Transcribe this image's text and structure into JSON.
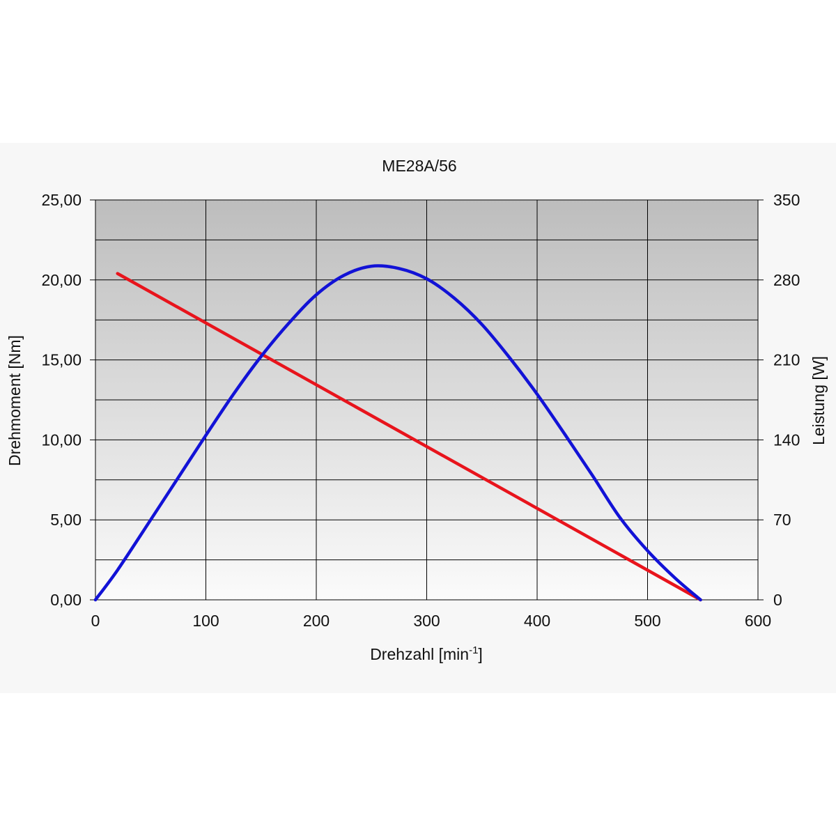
{
  "chart_data": {
    "type": "line",
    "title": "ME28A/56",
    "xlabel": "Drehzahl [min",
    "xlabel_superscript": "-1",
    "xlabel_suffix": "]",
    "ylabel_left": "Drehmoment [Nm]",
    "ylabel_right": "Leistung [W]",
    "xlim": [
      0,
      600
    ],
    "ylim_left": [
      0,
      25
    ],
    "ylim_right": [
      0,
      350
    ],
    "x_ticks": [
      "0",
      "100",
      "200",
      "300",
      "400",
      "500",
      "600"
    ],
    "y_left_ticks": [
      "0,00",
      "5,00",
      "10,00",
      "15,00",
      "20,00",
      "25,00"
    ],
    "y_right_ticks": [
      "0",
      "70",
      "140",
      "210",
      "280",
      "350"
    ],
    "grid": true,
    "series": [
      {
        "axis": "left",
        "color": "#e8141c",
        "x": [
          20,
          548
        ],
        "y": [
          20.4,
          0
        ]
      },
      {
        "axis": "right",
        "color": "#1212d6",
        "x": [
          0,
          20,
          50,
          75,
          100,
          125,
          150,
          175,
          200,
          225,
          250,
          275,
          300,
          325,
          350,
          375,
          400,
          425,
          450,
          475,
          500,
          525,
          548
        ],
        "y": [
          0,
          26,
          70,
          107,
          144,
          180,
          213,
          242,
          267,
          284,
          292,
          290,
          281,
          264,
          241,
          212,
          180,
          145,
          109,
          72,
          43,
          19,
          0
        ]
      }
    ],
    "background_gradient": [
      "#bdbdbd",
      "#fbfbfb"
    ],
    "frame_background": "#f7f7f7"
  }
}
